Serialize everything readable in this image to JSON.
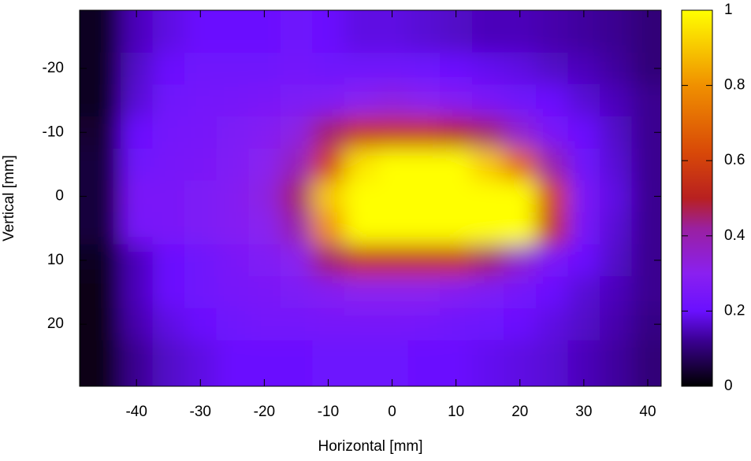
{
  "chart_data": {
    "type": "heatmap",
    "xlabel": "Horizontal [mm]",
    "ylabel": "Vertical [mm]",
    "x": [
      -45,
      -40,
      -35,
      -30,
      -25,
      -20,
      -15,
      -10,
      -5,
      0,
      5,
      10,
      15,
      20,
      25,
      30,
      35,
      40
    ],
    "y": [
      -25,
      -20,
      -15,
      -10,
      -5,
      0,
      5,
      10,
      15,
      20,
      25
    ],
    "z": [
      [
        0.03,
        0.15,
        0.18,
        0.2,
        0.2,
        0.2,
        0.22,
        0.2,
        0.18,
        0.18,
        0.17,
        0.16,
        0.15,
        0.15,
        0.14,
        0.13,
        0.12,
        0.1
      ],
      [
        0.03,
        0.16,
        0.2,
        0.22,
        0.22,
        0.22,
        0.23,
        0.22,
        0.22,
        0.22,
        0.21,
        0.2,
        0.19,
        0.18,
        0.16,
        0.15,
        0.13,
        0.1
      ],
      [
        0.03,
        0.17,
        0.22,
        0.23,
        0.24,
        0.25,
        0.26,
        0.27,
        0.3,
        0.32,
        0.3,
        0.28,
        0.25,
        0.22,
        0.2,
        0.17,
        0.15,
        0.12
      ],
      [
        0.04,
        0.2,
        0.23,
        0.24,
        0.26,
        0.28,
        0.32,
        0.45,
        0.55,
        0.55,
        0.55,
        0.5,
        0.45,
        0.35,
        0.25,
        0.2,
        0.16,
        0.12
      ],
      [
        0.05,
        0.22,
        0.24,
        0.25,
        0.27,
        0.3,
        0.38,
        0.6,
        0.95,
        1,
        1,
        1,
        0.9,
        0.7,
        0.4,
        0.22,
        0.17,
        0.12
      ],
      [
        0.05,
        0.25,
        0.25,
        0.26,
        0.28,
        0.32,
        0.45,
        0.9,
        1,
        1,
        1,
        1,
        1,
        1,
        0.6,
        0.25,
        0.18,
        0.12
      ],
      [
        0.05,
        0.24,
        0.25,
        0.26,
        0.28,
        0.3,
        0.4,
        0.8,
        1,
        1,
        1,
        1,
        1,
        1,
        0.55,
        0.24,
        0.17,
        0.12
      ],
      [
        0.03,
        0.15,
        0.2,
        0.22,
        0.25,
        0.27,
        0.3,
        0.45,
        0.55,
        0.55,
        0.55,
        0.55,
        0.45,
        0.35,
        0.25,
        0.2,
        0.16,
        0.12
      ],
      [
        0.02,
        0.15,
        0.2,
        0.22,
        0.24,
        0.25,
        0.26,
        0.28,
        0.3,
        0.3,
        0.3,
        0.28,
        0.26,
        0.23,
        0.2,
        0.17,
        0.15,
        0.12
      ],
      [
        0.02,
        0.14,
        0.18,
        0.2,
        0.22,
        0.23,
        0.23,
        0.24,
        0.24,
        0.24,
        0.23,
        0.22,
        0.21,
        0.2,
        0.18,
        0.16,
        0.14,
        0.11
      ],
      [
        0.02,
        0.12,
        0.16,
        0.18,
        0.2,
        0.2,
        0.2,
        0.21,
        0.21,
        0.21,
        0.2,
        0.2,
        0.19,
        0.18,
        0.17,
        0.15,
        0.13,
        0.1
      ]
    ],
    "xlim": [
      -48.9,
      42.1
    ],
    "xticks": [
      -40,
      -30,
      -20,
      -10,
      0,
      10,
      20,
      30,
      40
    ],
    "ylim": [
      -29.1,
      29.7
    ],
    "yticks": [
      -20,
      -10,
      0,
      10,
      20
    ],
    "zlim": [
      0,
      1
    ],
    "zticks": [
      0,
      0.2,
      0.4,
      0.6,
      0.8,
      1
    ],
    "colormap": [
      {
        "value": 0,
        "color": "#000000"
      },
      {
        "value": 0.12,
        "color": "#3a0090"
      },
      {
        "value": 0.2,
        "color": "#6a10ff"
      },
      {
        "value": 0.3,
        "color": "#8a20f0"
      },
      {
        "value": 0.42,
        "color": "#9a20a0"
      },
      {
        "value": 0.5,
        "color": "#b82020"
      },
      {
        "value": 0.62,
        "color": "#d84808"
      },
      {
        "value": 0.8,
        "color": "#f09000"
      },
      {
        "value": 1,
        "color": "#ffff00"
      }
    ]
  }
}
